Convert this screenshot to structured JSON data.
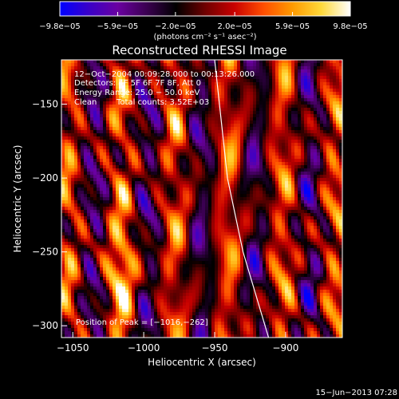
{
  "colorbar": {
    "ticks": [
      "−9.8e−05",
      "−5.9e−05",
      "−2.0e−05",
      "2.0e−05",
      "5.9e−05",
      "9.8e−05"
    ],
    "unit_label": "(photons cm⁻² s⁻¹ asec⁻²)",
    "range": [
      -9.8e-05,
      9.8e-05
    ],
    "stops": [
      "#0000ff",
      "#3a00c8",
      "#6a00a0",
      "#3a0050",
      "#000000",
      "#6e0000",
      "#c80000",
      "#ff4d00",
      "#ff9a00",
      "#ffd93a",
      "#ffffff"
    ]
  },
  "info": {
    "time_range": "12−Oct−2004 00:09:28.000 to 00:13:26.000",
    "detectors": "Detectors: 4F 5F 6F 7F 8F, Att 0",
    "energy": "Energy Range: 25.0 − 50.0 keV",
    "algorithm": "Clean",
    "total_counts": "Total counts: 3.52E+03",
    "peak": "Position of Peak = [−1016,−262]"
  },
  "footer": {
    "timestamp": "15−Jun−2013 07:28"
  },
  "chart_data": {
    "type": "heatmap",
    "title": "Reconstructed RHESSI Image",
    "xlabel": "Heliocentric X (arcsec)",
    "ylabel": "Heliocentric Y (arcsec)",
    "xlim": [
      -1058,
      -860
    ],
    "ylim": [
      -308,
      -120
    ],
    "x_ticks": [
      -1050,
      -1000,
      -950,
      -900
    ],
    "y_ticks": [
      -150,
      -200,
      -250,
      -300
    ],
    "x_tick_labels": [
      "−1050",
      "−1000",
      "−950",
      "−900"
    ],
    "y_tick_labels": [
      "−150",
      "−200",
      "−250",
      "−300"
    ],
    "peak": [
      -1016,
      -262
    ],
    "limb_curve": [
      [
        -950,
        -120
      ],
      [
        -941,
        -200
      ],
      [
        -930,
        -250
      ],
      [
        -912,
        -308
      ]
    ],
    "grid": false,
    "colormap": "red-temperature with blue negatives"
  }
}
